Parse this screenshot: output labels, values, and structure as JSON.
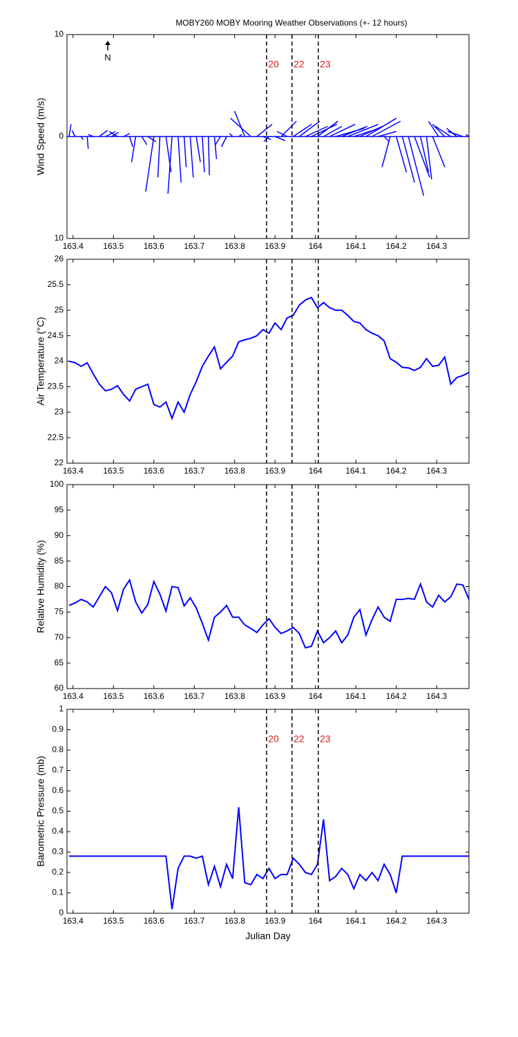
{
  "chart_data": [
    {
      "type": "stick",
      "title": "MOBY260 MOBY Mooring Weather Observations (+- 12 hours)",
      "ylabel": "Wind Speed (m/s)",
      "north_label": "N",
      "x": [
        163.39,
        163.405,
        163.42,
        163.435,
        163.45,
        163.465,
        163.48,
        163.495,
        163.51,
        163.525,
        163.54,
        163.555,
        163.57,
        163.585,
        163.6,
        163.615,
        163.63,
        163.645,
        163.66,
        163.675,
        163.69,
        163.705,
        163.72,
        163.735,
        163.75,
        163.765,
        163.78,
        163.795,
        163.81,
        163.825,
        163.84,
        163.855,
        163.87,
        163.885,
        163.9,
        163.915,
        163.93,
        163.945,
        163.96,
        163.975,
        163.99,
        164.005,
        164.02,
        164.035,
        164.05,
        164.065,
        164.08,
        164.095,
        164.11,
        164.125,
        164.14,
        164.155,
        164.17,
        164.185,
        164.2,
        164.215,
        164.23,
        164.245,
        164.26,
        164.275,
        164.29,
        164.305,
        164.32,
        164.335,
        164.35,
        164.365,
        164.38
      ],
      "u": [
        0.2,
        -0.3,
        0.2,
        0.1,
        -0.5,
        0.8,
        1.0,
        0.7,
        -0.8,
        0.6,
        0.3,
        -0.4,
        0.5,
        0.8,
        -0.8,
        -0.2,
        0.5,
        -0.4,
        0.3,
        0.2,
        0.3,
        0.4,
        0.2,
        0.1,
        0.2,
        -0.5,
        -0.5,
        -0.3,
        0.3,
        -1.0,
        -2.0,
        1.5,
        0.8,
        -0.5,
        1.0,
        1.5,
        -1.0,
        1.8,
        2.0,
        2.2,
        2.5,
        2.0,
        1.8,
        2.5,
        2.8,
        2.5,
        3.0,
        2.5,
        2.2,
        3.0,
        2.8,
        1.8,
        0.5,
        -0.8,
        1.0,
        1.2,
        1.5,
        1.5,
        0.8,
        0.5,
        1.2,
        -1.0,
        -1.2,
        -1.5,
        -1.0,
        -1.5,
        -0.3
      ],
      "v": [
        1.2,
        0.6,
        -0.3,
        -1.2,
        0.2,
        0.6,
        0.5,
        0.4,
        0.5,
        0.3,
        -1.0,
        -2.5,
        -0.8,
        -0.5,
        -5.4,
        -4.0,
        -3.5,
        -5.6,
        -4.5,
        -3.0,
        -4.0,
        -2.5,
        -3.5,
        -3.8,
        -2.2,
        -0.8,
        -1.0,
        0.3,
        0.2,
        2.5,
        1.8,
        1.2,
        -0.3,
        -0.5,
        -0.4,
        1.5,
        0.5,
        1.2,
        1.5,
        1.0,
        1.2,
        1.5,
        1.0,
        1.2,
        0.8,
        1.0,
        1.2,
        0.8,
        1.0,
        1.8,
        1.5,
        0.5,
        -0.5,
        -3.0,
        -3.5,
        -4.5,
        -5.8,
        -4.0,
        -3.5,
        -4.2,
        -3.0,
        1.5,
        1.2,
        1.0,
        0.8,
        0.5,
        0.2
      ],
      "color": "#0000ff",
      "xlim": [
        163.385,
        164.38
      ],
      "xticks": [
        163.4,
        163.5,
        163.6,
        163.7,
        163.8,
        163.9,
        164,
        164.1,
        164.2,
        164.3
      ],
      "ylim": [
        -10,
        10
      ],
      "yticks": [
        {
          "value": -10,
          "label": "10"
        },
        0,
        10
      ],
      "vlines": [
        163.879,
        163.942,
        164.007
      ],
      "vline_labels": [
        "20",
        "22",
        "23"
      ],
      "vline_label_color": "#d42020"
    },
    {
      "type": "line",
      "ylabel": "Air Temperature (°C)",
      "x": [
        163.39,
        163.405,
        163.42,
        163.435,
        163.45,
        163.465,
        163.48,
        163.495,
        163.51,
        163.525,
        163.54,
        163.555,
        163.57,
        163.585,
        163.6,
        163.615,
        163.63,
        163.645,
        163.66,
        163.675,
        163.69,
        163.705,
        163.72,
        163.735,
        163.75,
        163.765,
        163.78,
        163.795,
        163.81,
        163.825,
        163.84,
        163.855,
        163.87,
        163.885,
        163.9,
        163.915,
        163.93,
        163.945,
        163.96,
        163.975,
        163.99,
        164.005,
        164.02,
        164.035,
        164.05,
        164.065,
        164.08,
        164.095,
        164.11,
        164.125,
        164.14,
        164.155,
        164.17,
        164.185,
        164.2,
        164.215,
        164.23,
        164.245,
        164.26,
        164.275,
        164.29,
        164.305,
        164.32,
        164.335,
        164.35,
        164.365,
        164.38
      ],
      "values": [
        24.0,
        23.97,
        23.9,
        23.97,
        23.75,
        23.55,
        23.42,
        23.45,
        23.52,
        23.35,
        23.22,
        23.45,
        23.5,
        23.55,
        23.15,
        23.1,
        23.2,
        22.88,
        23.2,
        23.0,
        23.35,
        23.6,
        23.9,
        24.1,
        24.28,
        23.85,
        23.98,
        24.1,
        24.38,
        24.42,
        24.45,
        24.5,
        24.62,
        24.55,
        24.75,
        24.62,
        24.85,
        24.9,
        25.1,
        25.2,
        25.25,
        25.05,
        25.15,
        25.05,
        25.0,
        25.0,
        24.9,
        24.78,
        24.75,
        24.62,
        24.55,
        24.5,
        24.4,
        24.05,
        23.98,
        23.88,
        23.87,
        23.82,
        23.88,
        24.05,
        23.9,
        23.92,
        24.08,
        23.55,
        23.68,
        23.72,
        23.78
      ],
      "color": "#0000ff",
      "xlim": [
        163.385,
        164.38
      ],
      "xticks": [
        163.4,
        163.5,
        163.6,
        163.7,
        163.8,
        163.9,
        164,
        164.1,
        164.2,
        164.3
      ],
      "ylim": [
        22,
        26
      ],
      "yticks": [
        22,
        22.5,
        23,
        23.5,
        24,
        24.5,
        25,
        25.5,
        26
      ],
      "vlines": [
        163.879,
        163.942,
        164.007
      ]
    },
    {
      "type": "line",
      "ylabel": "Relative Humidity (%)",
      "x": [
        163.39,
        163.405,
        163.42,
        163.435,
        163.45,
        163.465,
        163.48,
        163.495,
        163.51,
        163.525,
        163.54,
        163.555,
        163.57,
        163.585,
        163.6,
        163.615,
        163.63,
        163.645,
        163.66,
        163.675,
        163.69,
        163.705,
        163.72,
        163.735,
        163.75,
        163.765,
        163.78,
        163.795,
        163.81,
        163.825,
        163.84,
        163.855,
        163.87,
        163.885,
        163.9,
        163.915,
        163.93,
        163.945,
        163.96,
        163.975,
        163.99,
        164.005,
        164.02,
        164.035,
        164.05,
        164.065,
        164.08,
        164.095,
        164.11,
        164.125,
        164.14,
        164.155,
        164.17,
        164.185,
        164.2,
        164.215,
        164.23,
        164.245,
        164.26,
        164.275,
        164.29,
        164.305,
        164.32,
        164.335,
        164.35,
        164.365,
        164.38
      ],
      "values": [
        76.3,
        76.8,
        77.5,
        77,
        76,
        78,
        80,
        78.8,
        75.3,
        79.5,
        81.3,
        77,
        74.8,
        76.5,
        81,
        78.5,
        75.2,
        80,
        79.8,
        76.2,
        77.8,
        75.8,
        72.8,
        69.5,
        74,
        75,
        76.3,
        74,
        74,
        72.5,
        71.8,
        71,
        72.5,
        73.7,
        72,
        70.8,
        71.3,
        72,
        70.8,
        68,
        68.3,
        71.3,
        69,
        70,
        71.3,
        69,
        70.5,
        74,
        75.5,
        70.5,
        73.5,
        76,
        74,
        73.2,
        77.5,
        77.5,
        77.7,
        77.5,
        80.5,
        77,
        76,
        78.3,
        77,
        78,
        80.5,
        80.3,
        77.5
      ],
      "color": "#0000ff",
      "xlim": [
        163.385,
        164.38
      ],
      "xticks": [
        163.4,
        163.5,
        163.6,
        163.7,
        163.8,
        163.9,
        164,
        164.1,
        164.2,
        164.3
      ],
      "ylim": [
        60,
        100
      ],
      "yticks": [
        60,
        65,
        70,
        75,
        80,
        85,
        90,
        95,
        100
      ],
      "vlines": [
        163.879,
        163.942,
        164.007
      ]
    },
    {
      "type": "line",
      "ylabel": "Barometric Pressure (mb)",
      "xlabel": "Julian Day",
      "x": [
        163.39,
        163.405,
        163.42,
        163.435,
        163.45,
        163.465,
        163.48,
        163.495,
        163.51,
        163.525,
        163.54,
        163.555,
        163.57,
        163.585,
        163.6,
        163.615,
        163.63,
        163.645,
        163.66,
        163.675,
        163.69,
        163.705,
        163.72,
        163.735,
        163.75,
        163.765,
        163.78,
        163.795,
        163.81,
        163.825,
        163.84,
        163.855,
        163.87,
        163.885,
        163.9,
        163.915,
        163.93,
        163.945,
        163.96,
        163.975,
        163.99,
        164.005,
        164.02,
        164.035,
        164.05,
        164.065,
        164.08,
        164.095,
        164.11,
        164.125,
        164.14,
        164.155,
        164.17,
        164.185,
        164.2,
        164.215,
        164.23,
        164.245,
        164.26,
        164.275,
        164.29,
        164.305,
        164.32,
        164.335,
        164.35,
        164.365,
        164.38
      ],
      "values": [
        0.28,
        0.28,
        0.28,
        0.28,
        0.28,
        0.28,
        0.28,
        0.28,
        0.28,
        0.28,
        0.28,
        0.28,
        0.28,
        0.28,
        0.28,
        0.28,
        0.28,
        0.02,
        0.22,
        0.28,
        0.28,
        0.27,
        0.28,
        0.14,
        0.23,
        0.13,
        0.24,
        0.17,
        0.52,
        0.15,
        0.14,
        0.19,
        0.17,
        0.22,
        0.17,
        0.19,
        0.19,
        0.27,
        0.24,
        0.2,
        0.19,
        0.24,
        0.46,
        0.16,
        0.18,
        0.22,
        0.19,
        0.12,
        0.19,
        0.16,
        0.2,
        0.16,
        0.24,
        0.19,
        0.1,
        0.28,
        0.28,
        0.28,
        0.28,
        0.28,
        0.28,
        0.28,
        0.28,
        0.28,
        0.28,
        0.28,
        0.28
      ],
      "color": "#0000ff",
      "xlim": [
        163.385,
        164.38
      ],
      "xticks": [
        163.4,
        163.5,
        163.6,
        163.7,
        163.8,
        163.9,
        164,
        164.1,
        164.2,
        164.3
      ],
      "ylim": [
        0,
        1
      ],
      "yticks": [
        0,
        0.1,
        0.2,
        0.3,
        0.4,
        0.5,
        0.6,
        0.7,
        0.8,
        0.9,
        1
      ],
      "vlines": [
        163.879,
        163.942,
        164.007
      ],
      "vline_labels": [
        "20",
        "22",
        "23"
      ],
      "vline_label_color": "#d42020"
    }
  ]
}
